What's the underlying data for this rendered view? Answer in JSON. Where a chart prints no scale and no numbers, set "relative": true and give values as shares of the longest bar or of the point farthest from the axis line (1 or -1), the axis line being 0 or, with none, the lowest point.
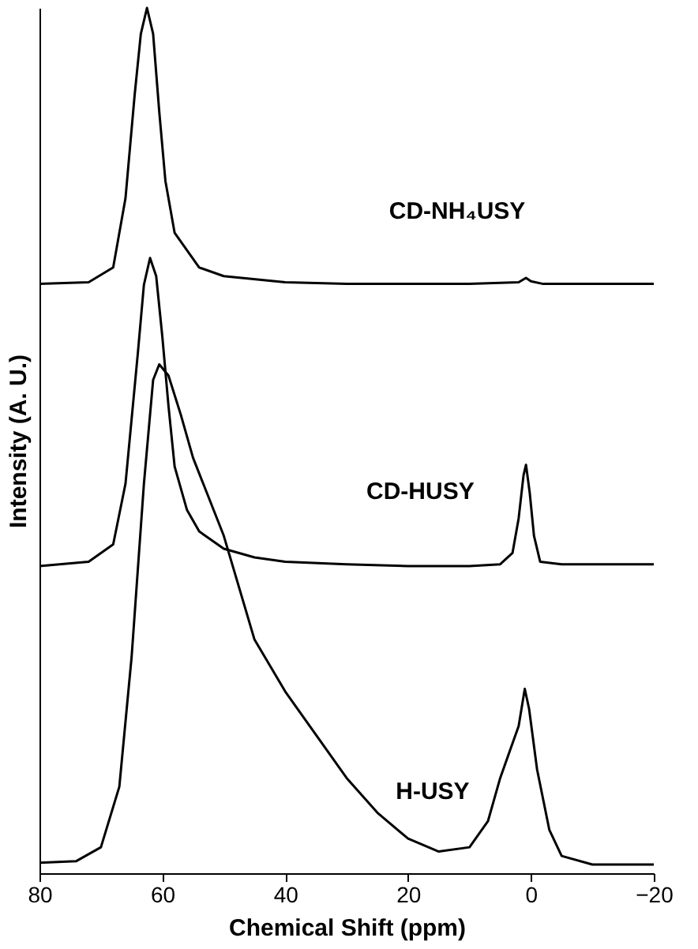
{
  "chart_data": {
    "type": "line",
    "relative": true,
    "xlabel": "Chemical Shift (ppm)",
    "ylabel": "Intensity (A. U.)",
    "xlim": [
      80,
      -20
    ],
    "xticks": [
      80,
      60,
      40,
      20,
      0,
      -20
    ],
    "grid": false,
    "legend": false,
    "marker": "none",
    "line_style": "solid",
    "series": [
      {
        "name": "CD-NH₄USY",
        "color": "#000000",
        "x": [
          80,
          72,
          68,
          66,
          64.5,
          63.5,
          62.5,
          61.5,
          60.5,
          59.5,
          58,
          56,
          54,
          50,
          40,
          30,
          20,
          10,
          2,
          0.8,
          0,
          -2,
          -10,
          -20
        ],
        "values": [
          0.681,
          0.683,
          0.7,
          0.78,
          0.9,
          0.97,
          1.0,
          0.97,
          0.88,
          0.8,
          0.74,
          0.72,
          0.7,
          0.69,
          0.683,
          0.681,
          0.681,
          0.681,
          0.683,
          0.688,
          0.684,
          0.681,
          0.681,
          0.681
        ]
      },
      {
        "name": "CD-HUSY",
        "color": "#000000",
        "x": [
          80,
          72,
          68,
          66,
          64,
          63,
          62,
          61,
          60,
          59,
          58,
          56,
          54,
          50,
          45,
          40,
          30,
          20,
          10,
          5,
          3,
          2,
          1.2,
          0.8,
          0.2,
          -0.5,
          -1.5,
          -5,
          -20
        ],
        "values": [
          0.355,
          0.36,
          0.38,
          0.45,
          0.6,
          0.68,
          0.711,
          0.69,
          0.62,
          0.54,
          0.47,
          0.42,
          0.395,
          0.375,
          0.365,
          0.36,
          0.357,
          0.355,
          0.355,
          0.357,
          0.37,
          0.41,
          0.46,
          0.472,
          0.44,
          0.39,
          0.36,
          0.357,
          0.357
        ]
      },
      {
        "name": "H-USY",
        "color": "#000000",
        "x": [
          80,
          74,
          70,
          67,
          65,
          63,
          61.5,
          60.5,
          59,
          57,
          55,
          50,
          45,
          40,
          35,
          30,
          25,
          20,
          15,
          10,
          7,
          5,
          3.5,
          2,
          1,
          0.3,
          -1,
          -3,
          -5,
          -10,
          -20
        ],
        "values": [
          0.012,
          0.014,
          0.03,
          0.1,
          0.25,
          0.45,
          0.57,
          0.588,
          0.575,
          0.53,
          0.48,
          0.39,
          0.27,
          0.21,
          0.16,
          0.11,
          0.07,
          0.04,
          0.025,
          0.03,
          0.06,
          0.11,
          0.14,
          0.17,
          0.213,
          0.19,
          0.12,
          0.05,
          0.02,
          0.01,
          0.01
        ]
      }
    ]
  }
}
